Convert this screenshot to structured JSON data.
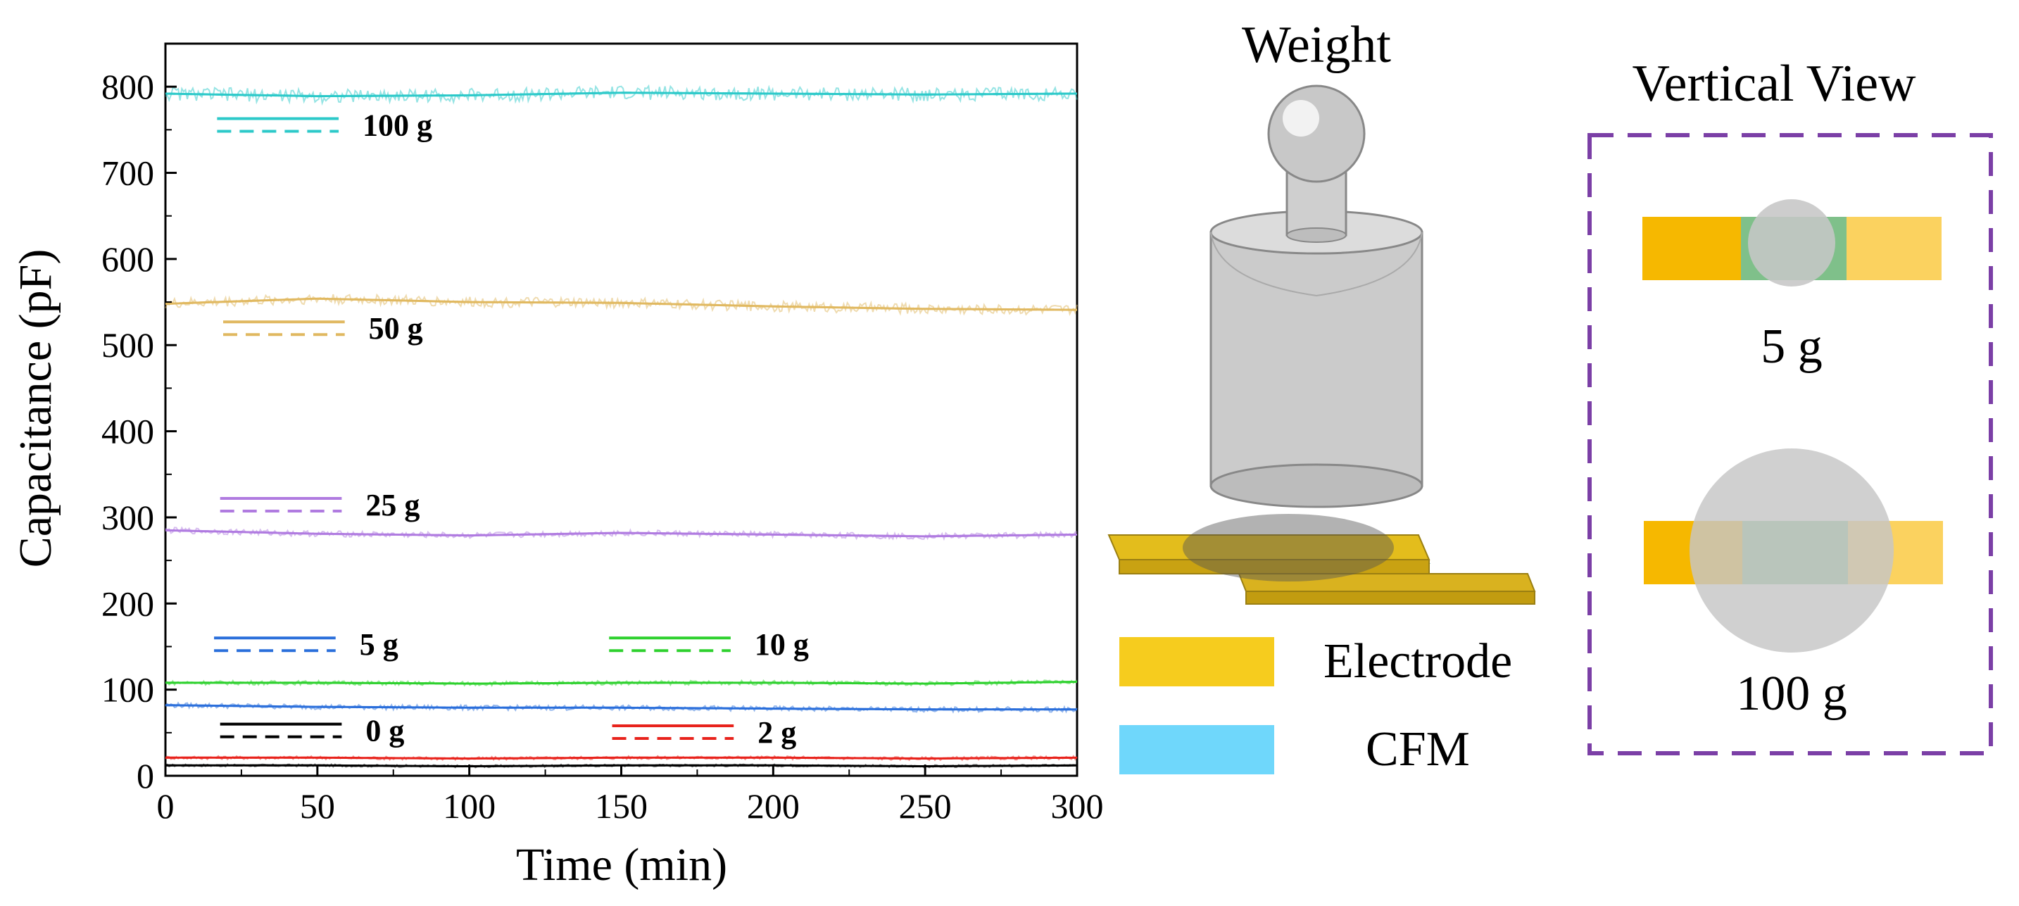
{
  "chart_data": {
    "type": "line",
    "xlabel": "Time (min)",
    "ylabel": "Capacitance (pF)",
    "xlim": [
      0,
      300
    ],
    "ylim": [
      0,
      850
    ],
    "xticks": [
      0,
      50,
      100,
      150,
      200,
      250,
      300
    ],
    "yticks": [
      0,
      100,
      200,
      300,
      400,
      500,
      600,
      700,
      800
    ],
    "grid": false,
    "series": [
      {
        "name": "0 g",
        "color": "#000000",
        "x": [
          0,
          50,
          100,
          150,
          200,
          250,
          300
        ],
        "y": [
          12,
          12,
          11,
          12,
          12,
          11,
          12
        ]
      },
      {
        "name": "2 g",
        "color": "#e8231c",
        "x": [
          0,
          50,
          100,
          150,
          200,
          250,
          300
        ],
        "y": [
          21,
          21,
          20,
          21,
          21,
          20,
          21
        ]
      },
      {
        "name": "5 g",
        "color": "#2a6fdb",
        "x": [
          0,
          50,
          100,
          150,
          200,
          250,
          300
        ],
        "y": [
          82,
          80,
          79,
          79,
          78,
          77,
          77
        ]
      },
      {
        "name": "10 g",
        "color": "#2ed12e",
        "x": [
          0,
          50,
          100,
          150,
          200,
          250,
          300
        ],
        "y": [
          108,
          108,
          107,
          108,
          108,
          107,
          109
        ]
      },
      {
        "name": "25 g",
        "color": "#b07be0",
        "x": [
          0,
          50,
          100,
          150,
          200,
          250,
          300
        ],
        "y": [
          285,
          281,
          279,
          282,
          280,
          278,
          280
        ]
      },
      {
        "name": "50 g",
        "color": "#e0b860",
        "x": [
          0,
          50,
          100,
          150,
          200,
          250,
          300
        ],
        "y": [
          548,
          554,
          550,
          549,
          545,
          542,
          541
        ]
      },
      {
        "name": "100 g",
        "color": "#2cc9c9",
        "x": [
          0,
          50,
          100,
          150,
          200,
          250,
          300
        ],
        "y": [
          792,
          789,
          790,
          793,
          792,
          791,
          792
        ]
      }
    ]
  },
  "schematic": {
    "weight_title": "Weight",
    "vertical_view_title": "Vertical View",
    "legend": [
      {
        "label": "Electrode",
        "color": "#f6cc1e"
      },
      {
        "label": "CFM",
        "color": "#6fd7fb"
      }
    ],
    "views": [
      {
        "label": "5 g"
      },
      {
        "label": "100 g"
      }
    ]
  }
}
